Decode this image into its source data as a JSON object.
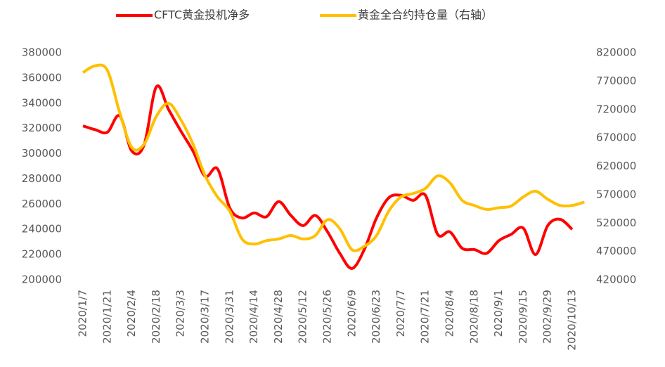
{
  "chart_data": {
    "type": "line",
    "categories": [
      "2020/1/7",
      null,
      "2020/1/21",
      null,
      "2020/2/4",
      null,
      "2020/2/18",
      null,
      "2020/3/3",
      null,
      "2020/3/17",
      null,
      "2020/3/31",
      null,
      "2020/4/14",
      null,
      "2020/4/28",
      null,
      "2020/5/12",
      null,
      "2020/5/26",
      null,
      "2020/6/9",
      null,
      "2020/6/23",
      null,
      "2020/7/7",
      null,
      "2020/7/21",
      null,
      "2020/8/4",
      null,
      "2020/8/18",
      null,
      "2020/9/1",
      null,
      "2020/9/15",
      null,
      "2002/9/29",
      null,
      "2020/10/13",
      null
    ],
    "series": [
      {
        "name": "CFTC黄金投机净多",
        "color": "#ff0000",
        "axis": "y",
        "values": [
          322000,
          319000,
          317000,
          330000,
          302000,
          307000,
          353000,
          335000,
          318000,
          302000,
          282000,
          288000,
          257000,
          249000,
          253000,
          250000,
          262000,
          251000,
          243000,
          251000,
          238000,
          221000,
          209000,
          224000,
          249000,
          265000,
          267000,
          263000,
          267000,
          236000,
          238000,
          225000,
          224000,
          221000,
          231000,
          236000,
          241000,
          220000,
          243000,
          248000,
          240000,
          null
        ]
      },
      {
        "name": "黄金全合约持仓量（右轴）",
        "color": "#ffc000",
        "axis": "y2",
        "values": [
          785000,
          797000,
          789000,
          715000,
          653000,
          659000,
          708000,
          731000,
          702000,
          659000,
          603000,
          566000,
          541000,
          492000,
          483000,
          489000,
          492000,
          498000,
          492000,
          498000,
          526000,
          510000,
          473000,
          479000,
          498000,
          541000,
          566000,
          572000,
          581000,
          603000,
          591000,
          560000,
          551000,
          544000,
          547000,
          550000,
          566000,
          576000,
          562000,
          551000,
          551000,
          557000
        ]
      }
    ],
    "ylim": [
      200000,
      380000
    ],
    "yticks": [
      200000,
      220000,
      240000,
      260000,
      280000,
      300000,
      320000,
      340000,
      360000,
      380000
    ],
    "y2lim": [
      420000,
      820000
    ],
    "y2ticks": [
      420000,
      470000,
      520000,
      570000,
      620000,
      670000,
      720000,
      770000,
      820000
    ],
    "legend": "top"
  }
}
